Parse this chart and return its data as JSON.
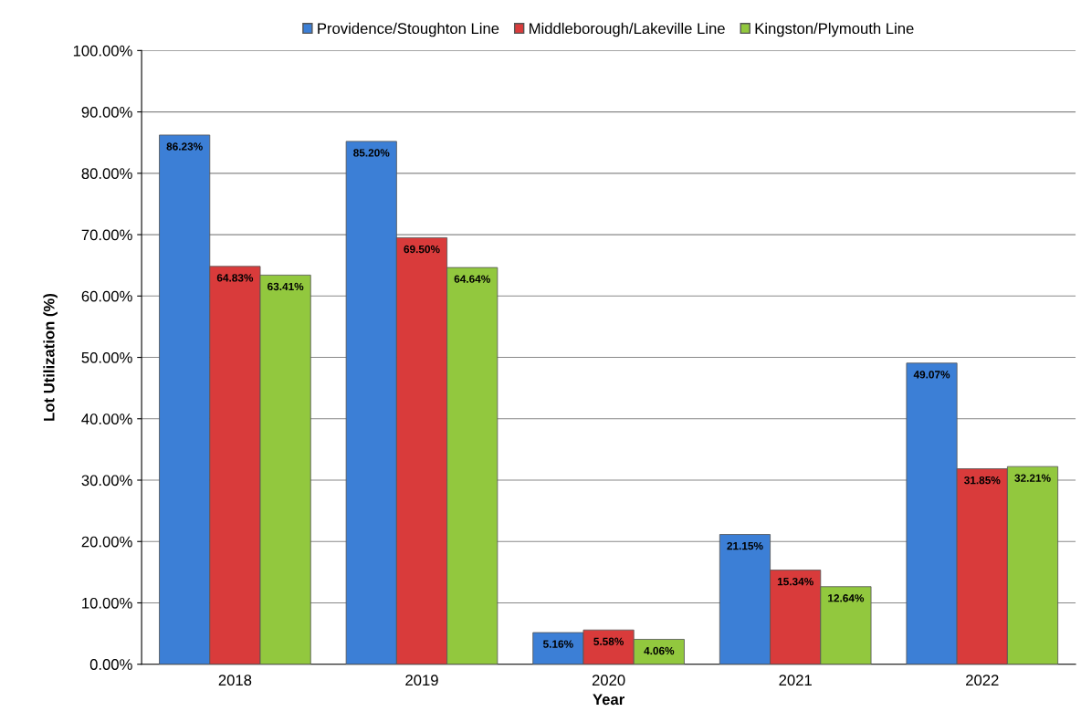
{
  "chart_data": {
    "type": "bar",
    "xlabel": "Year",
    "ylabel": "Lot Utilization (%)",
    "categories": [
      "2018",
      "2019",
      "2020",
      "2021",
      "2022"
    ],
    "series": [
      {
        "name": "Providence/Stoughton Line",
        "color": "#3c7fd6",
        "values": [
          86.23,
          85.2,
          5.16,
          21.15,
          49.07
        ],
        "value_labels": [
          "86.23%",
          "85.20%",
          "5.16%",
          "21.15%",
          "49.07%"
        ]
      },
      {
        "name": "Middleborough/Lakeville Line",
        "color": "#d93b3b",
        "values": [
          64.83,
          69.5,
          5.58,
          15.34,
          31.85
        ],
        "value_labels": [
          "64.83%",
          "69.50%",
          "5.58%",
          "15.34%",
          "31.85%"
        ]
      },
      {
        "name": "Kingston/Plymouth Line",
        "color": "#92c83e",
        "values": [
          63.41,
          64.64,
          4.06,
          12.64,
          32.21
        ],
        "value_labels": [
          "63.41%",
          "64.64%",
          "4.06%",
          "12.64%",
          "32.21%"
        ]
      }
    ],
    "ylim": [
      0,
      100
    ],
    "yticks": [
      {
        "value": 0,
        "label": "0.00%"
      },
      {
        "value": 10,
        "label": "10.00%"
      },
      {
        "value": 20,
        "label": "20.00%"
      },
      {
        "value": 30,
        "label": "30.00%"
      },
      {
        "value": 40,
        "label": "40.00%"
      },
      {
        "value": 50,
        "label": "50.00%"
      },
      {
        "value": 60,
        "label": "60.00%"
      },
      {
        "value": 70,
        "label": "70.00%"
      },
      {
        "value": 80,
        "label": "80.00%"
      },
      {
        "value": 90,
        "label": "90.00%"
      },
      {
        "value": 100,
        "label": "100.00%"
      }
    ],
    "grid": "y",
    "legend": "top"
  }
}
